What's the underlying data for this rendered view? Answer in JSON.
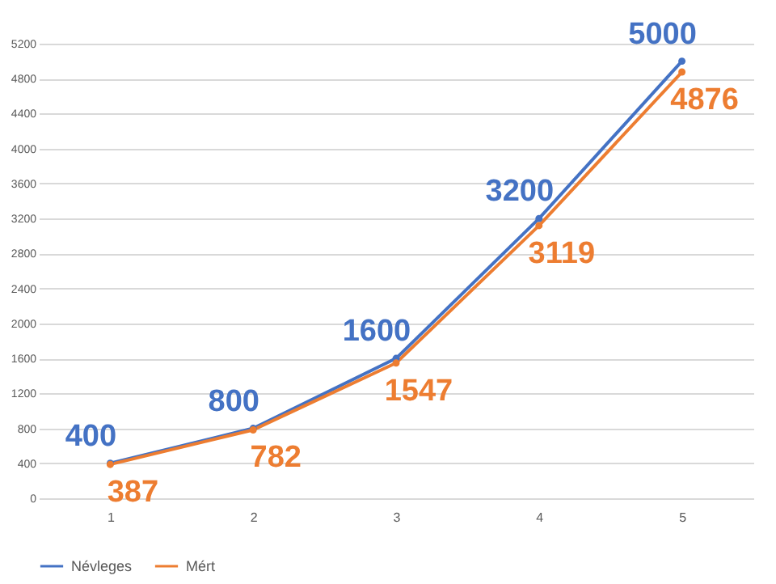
{
  "chart_data": {
    "type": "line",
    "categories": [
      "1",
      "2",
      "3",
      "4",
      "5"
    ],
    "series": [
      {
        "name": "Névleges",
        "color": "#4472c4",
        "values": [
          400,
          800,
          1600,
          3200,
          5000
        ]
      },
      {
        "name": "Mért",
        "color": "#ed7d31",
        "values": [
          387,
          782,
          1547,
          3119,
          4876
        ]
      }
    ],
    "ylim": [
      0,
      5200
    ],
    "yticks": [
      0,
      400,
      800,
      1200,
      1600,
      2000,
      2400,
      2800,
      3200,
      3600,
      4000,
      4400,
      4800,
      5200
    ],
    "grid": "y",
    "legend": "bottom",
    "marker": "circle",
    "line_style": "solid",
    "data_labels": true
  }
}
